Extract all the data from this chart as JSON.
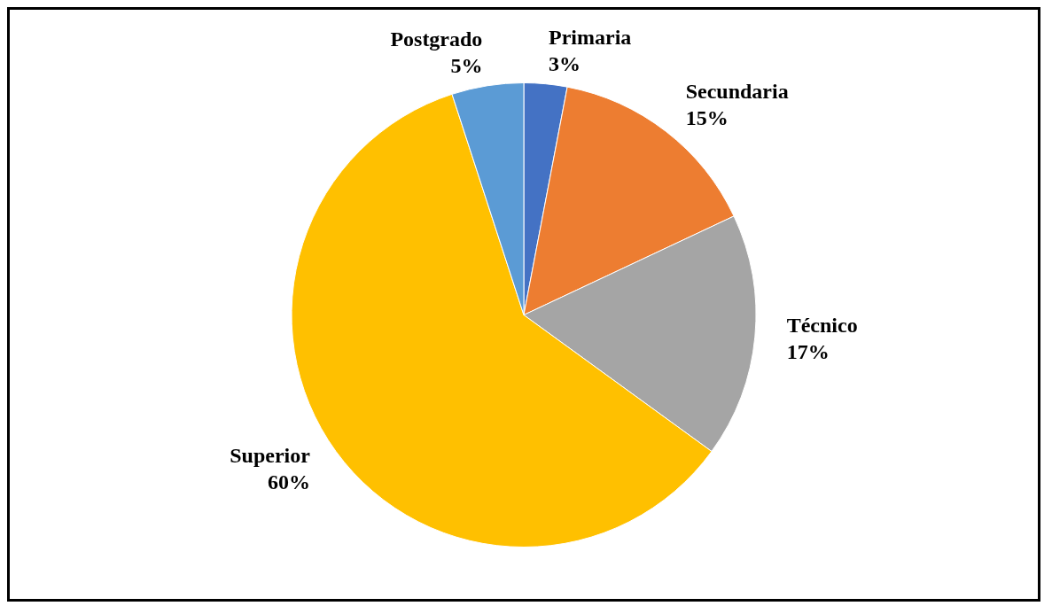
{
  "chart_data": {
    "type": "pie",
    "categories": [
      "Primaria",
      "Secundaria",
      "Técnico",
      "Superior",
      "Postgrado"
    ],
    "values": [
      3,
      15,
      17,
      60,
      5
    ],
    "colors": [
      "#4472c4",
      "#ed7d31",
      "#a5a5a5",
      "#ffc000",
      "#5b9bd5"
    ],
    "value_labels": [
      "3%",
      "15%",
      "17%",
      "60%",
      "5%"
    ],
    "legend": false
  }
}
